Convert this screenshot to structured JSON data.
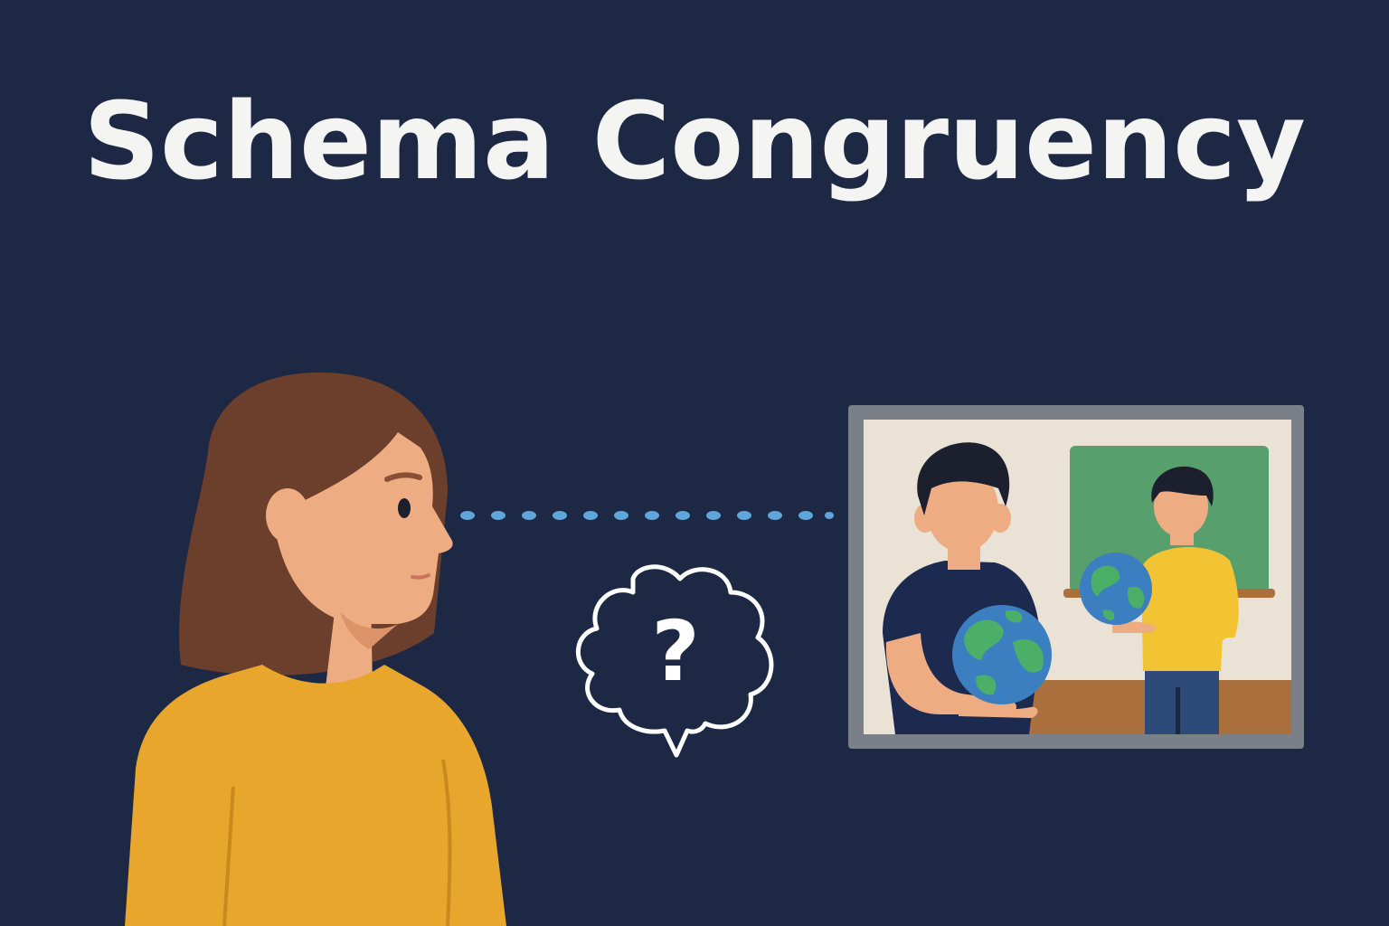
{
  "title": "Schema Congruency",
  "thought_bubble": {
    "symbol": "?"
  },
  "colors": {
    "background": "#1d2844",
    "sweater": "#e8a62c",
    "hair": "#6b3f2b",
    "skin": "#eeac82",
    "gaze_dots": "#5fa6da",
    "frame": "#7b8088",
    "picture_wall": "#ebe2d6",
    "chalkboard": "#57a06e",
    "floor": "#a9703e",
    "globe_ocean": "#3b7fc1",
    "globe_land": "#4caf68"
  },
  "icons": [
    "observer-person",
    "thought-bubble-icon",
    "globe-icon",
    "picture-frame"
  ]
}
